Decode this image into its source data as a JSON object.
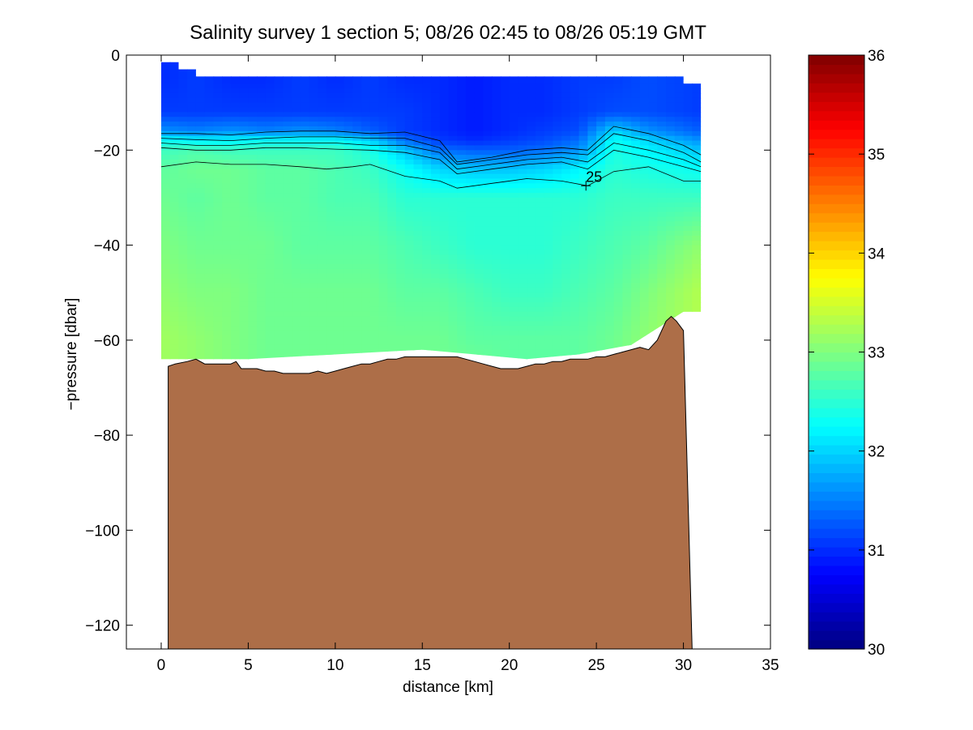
{
  "chart_data": {
    "type": "heatmap",
    "title": "Salinity survey 1 section 5; 08/26 02:45 to 08/26 05:19 GMT",
    "xlabel": "distance [km]",
    "ylabel": "−pressure [dbar]",
    "xlim": [
      -2,
      35
    ],
    "ylim": [
      -125,
      0
    ],
    "xticks": [
      0,
      5,
      10,
      15,
      20,
      25,
      30,
      35
    ],
    "yticks": [
      0,
      -20,
      -40,
      -60,
      -80,
      -100,
      -120
    ],
    "xtick_labels": [
      "0",
      "5",
      "10",
      "15",
      "20",
      "25",
      "30",
      "35"
    ],
    "ytick_labels": [
      "0",
      "−20",
      "−40",
      "−60",
      "−80",
      "−100",
      "−120"
    ],
    "grid": false,
    "colorbar": {
      "colormap": "jet",
      "range": [
        30,
        36
      ],
      "ticks": [
        30,
        31,
        32,
        33,
        34,
        35,
        36
      ],
      "tick_labels": [
        "30",
        "31",
        "32",
        "33",
        "34",
        "35",
        "36"
      ],
      "position": "right"
    },
    "contour_label": {
      "text": "25",
      "x": 24.4,
      "y": -27.5
    },
    "data_extent": {
      "x": [
        0,
        31
      ],
      "top": [
        [
          0,
          -1.5
        ],
        [
          1,
          -1.5
        ],
        [
          1,
          -3
        ],
        [
          2,
          -3
        ],
        [
          2,
          -4.5
        ],
        [
          30,
          -4.5
        ],
        [
          30,
          -6
        ],
        [
          31,
          -6
        ]
      ],
      "bottom": [
        [
          0,
          -64
        ],
        [
          5,
          -64
        ],
        [
          15,
          -62
        ],
        [
          18,
          -63
        ],
        [
          21,
          -64
        ],
        [
          24,
          -63
        ],
        [
          27,
          -61
        ],
        [
          30,
          -54
        ],
        [
          31,
          -54
        ]
      ]
    },
    "salinity_grid": {
      "x": [
        0,
        2,
        4,
        6,
        8,
        10,
        12,
        14,
        16,
        18,
        20,
        22,
        24,
        26,
        28,
        31
      ],
      "depth": [
        -5,
        -12,
        -16,
        -18,
        -20,
        -24,
        -30,
        -40,
        -50,
        -60,
        -65
      ],
      "values": [
        [
          31.0,
          31.1,
          31.0,
          31.0,
          31.1,
          31.0,
          31.1,
          31.0,
          31.0,
          30.9,
          31.0,
          31.0,
          31.1,
          31.1,
          31.2,
          31.1
        ],
        [
          31.1,
          31.1,
          31.1,
          31.1,
          31.1,
          31.1,
          31.1,
          31.1,
          31.0,
          30.9,
          31.0,
          31.0,
          31.1,
          31.2,
          31.2,
          31.1
        ],
        [
          31.6,
          31.5,
          31.6,
          31.5,
          31.6,
          31.5,
          31.3,
          31.1,
          31.0,
          30.9,
          31.0,
          31.1,
          31.2,
          32.0,
          31.6,
          31.3
        ],
        [
          32.3,
          32.2,
          32.2,
          32.3,
          32.3,
          32.3,
          32.0,
          31.4,
          31.1,
          31.0,
          31.1,
          31.2,
          31.4,
          32.3,
          32.0,
          31.6
        ],
        [
          32.6,
          32.7,
          32.6,
          32.6,
          32.6,
          32.6,
          32.4,
          31.9,
          31.4,
          31.3,
          31.3,
          31.4,
          31.6,
          32.4,
          32.2,
          31.9
        ],
        [
          32.8,
          32.9,
          32.9,
          32.8,
          32.8,
          32.7,
          32.6,
          32.3,
          32.0,
          31.9,
          31.9,
          32.0,
          32.2,
          32.5,
          32.4,
          32.3
        ],
        [
          32.9,
          32.8,
          32.9,
          32.8,
          32.8,
          32.7,
          32.7,
          32.5,
          32.5,
          32.5,
          32.5,
          32.5,
          32.5,
          32.6,
          32.6,
          32.6
        ],
        [
          33.0,
          32.9,
          32.9,
          32.9,
          32.8,
          32.8,
          32.8,
          32.7,
          32.6,
          32.5,
          32.5,
          32.5,
          32.6,
          32.7,
          32.8,
          33.1
        ],
        [
          33.1,
          33.0,
          33.0,
          32.9,
          32.9,
          32.9,
          32.9,
          32.8,
          32.8,
          32.7,
          32.6,
          32.6,
          32.7,
          32.8,
          33.0,
          33.3
        ],
        [
          33.2,
          33.1,
          33.0,
          32.9,
          32.9,
          32.9,
          32.9,
          32.9,
          32.9,
          32.8,
          32.8,
          32.8,
          32.8,
          32.9,
          33.1,
          33.3
        ],
        [
          33.2,
          33.1,
          33.0,
          32.9,
          32.9,
          32.9,
          32.9,
          32.9,
          32.9,
          32.9,
          32.8,
          32.8,
          32.8,
          32.9,
          33.1,
          33.3
        ]
      ]
    },
    "contour_lines": [
      {
        "x": [
          0,
          2,
          4,
          6,
          8,
          10,
          12,
          14,
          16,
          17,
          19,
          21,
          23,
          24.5,
          26,
          28,
          30,
          31
        ],
        "y": [
          -16.5,
          -16.5,
          -16.8,
          -16.2,
          -16,
          -16,
          -16.5,
          -16.2,
          -18,
          -22.5,
          -21.5,
          -20,
          -19.5,
          -20,
          -15,
          -16.5,
          -19,
          -21
        ]
      },
      {
        "x": [
          0,
          2,
          4,
          6,
          8,
          10,
          12,
          14,
          16,
          17,
          19,
          21,
          23,
          24.5,
          26,
          28,
          30,
          31
        ],
        "y": [
          -17.5,
          -17.8,
          -18,
          -17.5,
          -17.2,
          -17.2,
          -17.5,
          -17.5,
          -19.5,
          -23,
          -22,
          -21,
          -20.5,
          -21,
          -16.5,
          -18,
          -20.5,
          -22.5
        ]
      },
      {
        "x": [
          0,
          2,
          4,
          6,
          8,
          10,
          12,
          14,
          16,
          17,
          19,
          21,
          23,
          24.5,
          26,
          28,
          30,
          31
        ],
        "y": [
          -18.5,
          -19,
          -19,
          -18.5,
          -18.5,
          -18.5,
          -19,
          -19,
          -20.5,
          -24,
          -23,
          -22,
          -21.5,
          -22.5,
          -18.5,
          -20,
          -22,
          -23.5
        ]
      },
      {
        "x": [
          0,
          2,
          4,
          6,
          8,
          10,
          12,
          14,
          16,
          17,
          19,
          21,
          23,
          24.5,
          26,
          28,
          30,
          31
        ],
        "y": [
          -19.5,
          -20,
          -20,
          -19.5,
          -19.5,
          -19.8,
          -20,
          -20.5,
          -22,
          -25,
          -24,
          -23,
          -22.5,
          -24,
          -20,
          -21.5,
          -23.5,
          -24.5
        ]
      },
      {
        "x": [
          0,
          2,
          4,
          6,
          8,
          9.5,
          11,
          12,
          14,
          16,
          17,
          19,
          21,
          23,
          24.5,
          26,
          28,
          30,
          31
        ],
        "y": [
          -23.5,
          -22.5,
          -23,
          -23,
          -23.5,
          -24,
          -23.5,
          -23,
          -25.5,
          -26.5,
          -28,
          -27,
          -26,
          -26.5,
          -27.5,
          -24.5,
          -23.5,
          -26.5,
          -26.5
        ]
      }
    ],
    "bathymetry": {
      "x": [
        0.4,
        0.8,
        1.5,
        2,
        2.5,
        3,
        3.5,
        4,
        4.3,
        4.6,
        5,
        5.5,
        6,
        6.5,
        7,
        7.5,
        8,
        8.5,
        9,
        9.5,
        10,
        10.5,
        11,
        11.5,
        12,
        12.5,
        13,
        13.5,
        14,
        15,
        16,
        17,
        17.5,
        18,
        18.5,
        19,
        19.5,
        20,
        20.5,
        21,
        21.5,
        22,
        22.5,
        23,
        23.5,
        24,
        24.5,
        25,
        25.5,
        26,
        26.5,
        27,
        27.5,
        28,
        28.5,
        29,
        29.3,
        29.6,
        30,
        30.5
      ],
      "y": [
        -65.5,
        -65,
        -64.5,
        -64,
        -65,
        -65,
        -65,
        -65,
        -64.5,
        -66,
        -66,
        -66,
        -66.5,
        -66.5,
        -67,
        -67,
        -67,
        -67,
        -66.5,
        -67,
        -66.5,
        -66,
        -65.5,
        -65,
        -65,
        -64.5,
        -64,
        -64,
        -63.5,
        -63.5,
        -63.5,
        -63.5,
        -64,
        -64.5,
        -65,
        -65.5,
        -66,
        -66,
        -66,
        -65.5,
        -65,
        -65,
        -64.5,
        -64.5,
        -64,
        -64,
        -64,
        -63.5,
        -63.5,
        -63,
        -62.5,
        -62,
        -61.5,
        -62,
        -60,
        -56,
        -55,
        -56,
        -58,
        -125
      ]
    },
    "bathymetry_color": "#ad6e48"
  }
}
